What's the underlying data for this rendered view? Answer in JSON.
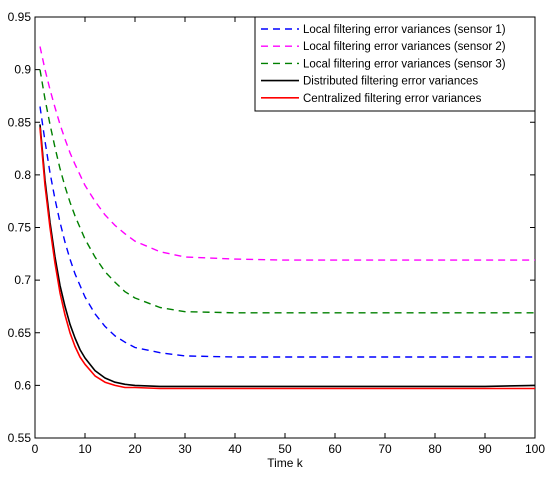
{
  "chart_data": {
    "type": "line",
    "title": "",
    "xlabel": "Time k",
    "ylabel": "",
    "xlim": [
      0,
      100
    ],
    "ylim": [
      0.55,
      0.95
    ],
    "xticks": [
      0,
      10,
      20,
      30,
      40,
      50,
      60,
      70,
      80,
      90,
      100
    ],
    "yticks": [
      0.55,
      0.6,
      0.65,
      0.7,
      0.75,
      0.8,
      0.85,
      0.9,
      0.95
    ],
    "grid": false,
    "legend_position": "top-right",
    "series": [
      {
        "name": "Local filtering error variances (sensor 1)",
        "color": "#0000ff",
        "style": "dashed",
        "x": [
          1,
          2,
          3,
          4,
          5,
          6,
          7,
          8,
          10,
          12,
          14,
          16,
          18,
          20,
          25,
          30,
          40,
          50,
          60,
          70,
          80,
          90,
          100
        ],
        "y": [
          0.865,
          0.832,
          0.802,
          0.777,
          0.755,
          0.736,
          0.72,
          0.706,
          0.684,
          0.668,
          0.656,
          0.647,
          0.641,
          0.636,
          0.631,
          0.628,
          0.627,
          0.627,
          0.627,
          0.627,
          0.627,
          0.627,
          0.627
        ]
      },
      {
        "name": "Local filtering error variances (sensor 2)",
        "color": "#ff00ff",
        "style": "dashed",
        "x": [
          1,
          2,
          3,
          4,
          5,
          6,
          7,
          8,
          10,
          12,
          14,
          16,
          18,
          20,
          25,
          30,
          40,
          50,
          60,
          70,
          80,
          90,
          100
        ],
        "y": [
          0.922,
          0.9,
          0.881,
          0.864,
          0.848,
          0.834,
          0.821,
          0.81,
          0.79,
          0.775,
          0.762,
          0.752,
          0.744,
          0.737,
          0.727,
          0.722,
          0.72,
          0.719,
          0.719,
          0.719,
          0.719,
          0.719,
          0.719
        ]
      },
      {
        "name": "Local filtering error variances (sensor 3)",
        "color": "#008000",
        "style": "dashed",
        "x": [
          1,
          2,
          3,
          4,
          5,
          6,
          7,
          8,
          10,
          12,
          14,
          16,
          18,
          20,
          25,
          30,
          40,
          50,
          60,
          70,
          80,
          90,
          100
        ],
        "y": [
          0.9,
          0.872,
          0.848,
          0.826,
          0.806,
          0.789,
          0.774,
          0.761,
          0.739,
          0.722,
          0.708,
          0.698,
          0.689,
          0.683,
          0.674,
          0.67,
          0.669,
          0.669,
          0.669,
          0.669,
          0.669,
          0.669,
          0.669
        ]
      },
      {
        "name": "Distributed filtering error variances",
        "color": "#000000",
        "style": "solid",
        "x": [
          1,
          2,
          3,
          4,
          5,
          6,
          7,
          8,
          9,
          10,
          12,
          14,
          16,
          18,
          20,
          25,
          30,
          40,
          50,
          60,
          70,
          80,
          90,
          100
        ],
        "y": [
          0.848,
          0.795,
          0.755,
          0.722,
          0.695,
          0.675,
          0.658,
          0.645,
          0.634,
          0.626,
          0.614,
          0.607,
          0.603,
          0.601,
          0.6,
          0.599,
          0.599,
          0.599,
          0.599,
          0.599,
          0.599,
          0.599,
          0.599,
          0.6
        ]
      },
      {
        "name": "Centralized filtering error variances",
        "color": "#ff0000",
        "style": "solid",
        "x": [
          1,
          2,
          3,
          4,
          5,
          6,
          7,
          8,
          9,
          10,
          12,
          14,
          16,
          18,
          20,
          25,
          30,
          40,
          50,
          60,
          70,
          80,
          90,
          100
        ],
        "y": [
          0.845,
          0.79,
          0.75,
          0.716,
          0.688,
          0.667,
          0.65,
          0.637,
          0.627,
          0.62,
          0.609,
          0.603,
          0.6,
          0.598,
          0.598,
          0.597,
          0.597,
          0.597,
          0.597,
          0.597,
          0.597,
          0.597,
          0.597,
          0.597
        ]
      }
    ]
  }
}
